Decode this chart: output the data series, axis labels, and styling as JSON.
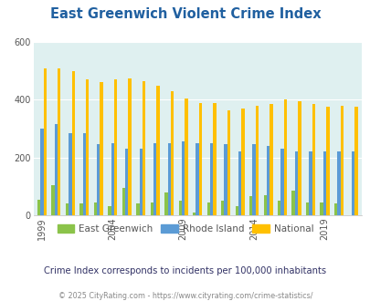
{
  "title": "East Greenwich Violent Crime Index",
  "years": [
    1999,
    2000,
    2001,
    2002,
    2003,
    2004,
    2005,
    2006,
    2007,
    2008,
    2009,
    2010,
    2011,
    2012,
    2013,
    2014,
    2015,
    2016,
    2017,
    2018,
    2019,
    2020,
    2021
  ],
  "east_greenwich": [
    55,
    105,
    40,
    40,
    45,
    30,
    95,
    40,
    45,
    80,
    50,
    10,
    45,
    50,
    30,
    65,
    70,
    50,
    85,
    45,
    45,
    40,
    0
  ],
  "rhode_island": [
    300,
    315,
    285,
    285,
    245,
    250,
    230,
    230,
    250,
    250,
    255,
    250,
    250,
    245,
    220,
    245,
    240,
    230,
    220,
    220,
    220,
    220,
    220
  ],
  "national": [
    510,
    510,
    500,
    470,
    460,
    470,
    475,
    465,
    450,
    430,
    405,
    390,
    390,
    365,
    370,
    380,
    385,
    400,
    395,
    385,
    375,
    380,
    375
  ],
  "color_eg": "#8bc34a",
  "color_ri": "#5b9bd5",
  "color_nat": "#ffc000",
  "bg_color": "#dff0f0",
  "title_color": "#2060a0",
  "ylabel_max": 600,
  "yticks": [
    0,
    200,
    400,
    600
  ],
  "subtitle": "Crime Index corresponds to incidents per 100,000 inhabitants",
  "footer": "© 2025 CityRating.com - https://www.cityrating.com/crime-statistics/",
  "legend_labels": [
    "East Greenwich",
    "Rhode Island",
    "National"
  ],
  "labeled_years": [
    1999,
    2004,
    2009,
    2014,
    2019
  ]
}
